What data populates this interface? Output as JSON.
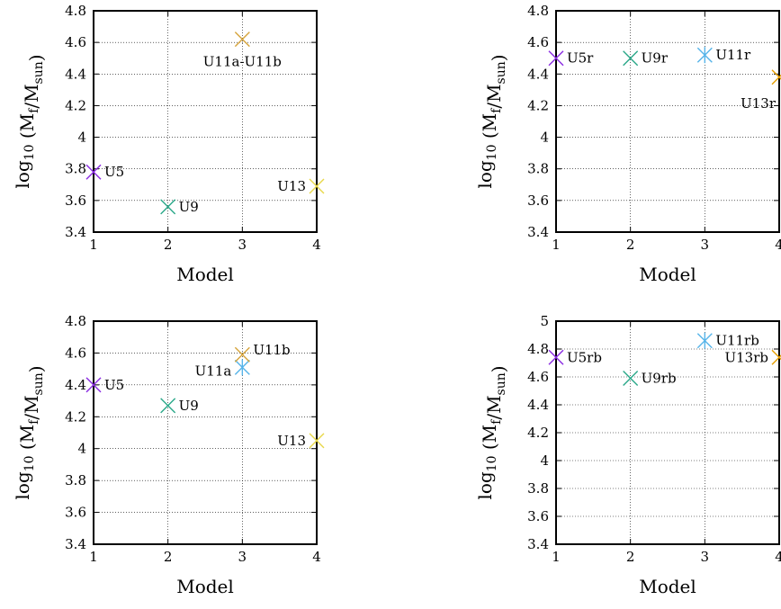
{
  "colors": {
    "U5": "#8a2be2",
    "U9": "#2aa889",
    "U11": "#56b4e9",
    "U11b": "#d6a43c",
    "U13": "#e8d84a",
    "U13r": "#e69f00"
  },
  "chart_data": [
    {
      "type": "scatter",
      "xlabel": "Model",
      "ylabel": "log10 (Mf/Msun)",
      "xlim": [
        1,
        4
      ],
      "ylim": [
        3.4,
        4.8
      ],
      "xticks": [
        "1",
        "2",
        "3",
        "4"
      ],
      "yticks": [
        "3.4",
        "3.6",
        "3.8",
        "4",
        "4.2",
        "4.4",
        "4.6",
        "4.8"
      ],
      "grid": true,
      "points": [
        {
          "label": "U5",
          "x": 1,
          "y": 3.78,
          "color": "#8a2be2",
          "label_pos": "right"
        },
        {
          "label": "U9",
          "x": 2,
          "y": 3.56,
          "color": "#2aa889",
          "label_pos": "right"
        },
        {
          "label": "U11a-U11b",
          "x": 3,
          "y": 4.62,
          "color": "#d6a43c",
          "label_pos": "below"
        },
        {
          "label": "U13",
          "x": 4,
          "y": 3.69,
          "color": "#e8d84a",
          "label_pos": "left"
        }
      ]
    },
    {
      "type": "scatter",
      "xlabel": "Model",
      "ylabel": "log10 (Mf/Msun)",
      "xlim": [
        1,
        4
      ],
      "ylim": [
        3.4,
        4.8
      ],
      "xticks": [
        "1",
        "2",
        "3",
        "4"
      ],
      "yticks": [
        "3.4",
        "3.6",
        "3.8",
        "4",
        "4.2",
        "4.4",
        "4.6",
        "4.8"
      ],
      "grid": true,
      "points": [
        {
          "label": "U5r",
          "x": 1,
          "y": 4.5,
          "color": "#8a2be2",
          "label_pos": "right"
        },
        {
          "label": "U9r",
          "x": 2,
          "y": 4.5,
          "color": "#2aa889",
          "label_pos": "right"
        },
        {
          "label": "U11r",
          "x": 3,
          "y": 4.52,
          "color": "#56b4e9",
          "label_pos": "right"
        },
        {
          "label": "U13r",
          "x": 4,
          "y": 4.38,
          "color": "#e69f00",
          "label_pos": "belowleft"
        }
      ]
    },
    {
      "type": "scatter",
      "xlabel": "Model",
      "ylabel": "log10 (Mf/Msun)",
      "xlim": [
        1,
        4
      ],
      "ylim": [
        3.4,
        4.8
      ],
      "xticks": [
        "1",
        "2",
        "3",
        "4"
      ],
      "yticks": [
        "3.4",
        "3.6",
        "3.8",
        "4",
        "4.2",
        "4.4",
        "4.6",
        "4.8"
      ],
      "grid": true,
      "points": [
        {
          "label": "U5",
          "x": 1,
          "y": 4.4,
          "color": "#8a2be2",
          "label_pos": "right"
        },
        {
          "label": "U9",
          "x": 2,
          "y": 4.27,
          "color": "#2aa889",
          "label_pos": "right"
        },
        {
          "label": "U11a",
          "x": 3,
          "y": 4.51,
          "color": "#56b4e9",
          "label_pos": "left"
        },
        {
          "label": "U11b",
          "x": 3,
          "y": 4.59,
          "color": "#d6a43c",
          "label_pos": "right"
        },
        {
          "label": "U13",
          "x": 4,
          "y": 4.05,
          "color": "#e8d84a",
          "label_pos": "left"
        }
      ]
    },
    {
      "type": "scatter",
      "xlabel": "Model",
      "ylabel": "log10 (Mf/Msun)",
      "xlim": [
        1,
        4
      ],
      "ylim": [
        3.4,
        5
      ],
      "xticks": [
        "1",
        "2",
        "3",
        "4"
      ],
      "yticks": [
        "3.4",
        "3.6",
        "3.8",
        "4",
        "4.2",
        "4.4",
        "4.6",
        "4.8",
        "5"
      ],
      "grid": true,
      "points": [
        {
          "label": "U5rb",
          "x": 1,
          "y": 4.74,
          "color": "#8a2be2",
          "label_pos": "right"
        },
        {
          "label": "U9rb",
          "x": 2,
          "y": 4.59,
          "color": "#2aa889",
          "label_pos": "right"
        },
        {
          "label": "U11rb",
          "x": 3,
          "y": 4.86,
          "color": "#56b4e9",
          "label_pos": "right"
        },
        {
          "label": "U13rb",
          "x": 4,
          "y": 4.74,
          "color": "#e69f00",
          "label_pos": "left"
        }
      ]
    }
  ]
}
